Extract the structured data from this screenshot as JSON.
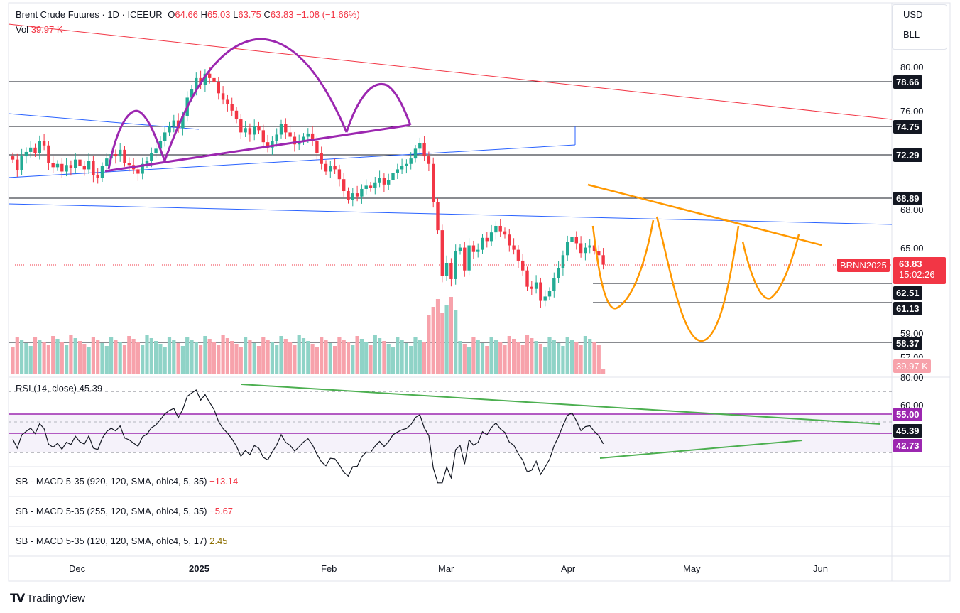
{
  "header": {
    "symbol": "Brent Crude Futures · 1D · ICEEUR",
    "o_label": "O",
    "o": "64.66",
    "h_label": "H",
    "h": "65.03",
    "l_label": "L",
    "l": "63.75",
    "c_label": "C",
    "c": "63.83",
    "change": "−1.08 (−1.66%)",
    "vol_label": "Vol",
    "vol": "39.97 K"
  },
  "currency_menu": {
    "currency": "USD",
    "unit": "BLL"
  },
  "price_axis": [
    "80.00",
    "76.00",
    "68.00",
    "65.00",
    "59.00",
    "57.00"
  ],
  "price_levels": [
    {
      "label": "78.66",
      "value": 78.66
    },
    {
      "label": "74.75",
      "value": 74.75
    },
    {
      "label": "72.29",
      "value": 72.29
    },
    {
      "label": "68.89",
      "value": 68.89
    },
    {
      "label": "62.51",
      "value": 62.51
    },
    {
      "label": "61.13",
      "value": 61.13
    },
    {
      "label": "58.37",
      "value": 58.37
    }
  ],
  "last_price": {
    "symbol_tag": "BRNN2025",
    "price": "63.83",
    "countdown": "15:02:26"
  },
  "volume_tag": "39.97 K",
  "rsi": {
    "label": "RSI (14, close)",
    "value": "45.39",
    "axis": [
      "80.00",
      "60.00"
    ],
    "levels": [
      "55.00",
      "45.39",
      "42.73"
    ]
  },
  "indicators": [
    {
      "label": "SB - MACD 5-35 (920, 120, SMA, ohlc4, 5, 35)",
      "value": "−13.14",
      "color": "#f23645"
    },
    {
      "label": "SB - MACD 5-35 (255, 120, SMA, ohlc4, 5, 35)",
      "value": "−5.67",
      "color": "#f23645"
    },
    {
      "label": "SB - MACD 5-35 (120, 120, SMA, ohlc4, 5, 17)",
      "value": "2.45",
      "color": "#8d6e00"
    }
  ],
  "time_axis": [
    "Dec",
    "2025",
    "Feb",
    "Mar",
    "Apr",
    "May",
    "Jun"
  ],
  "branding": "TradingView",
  "colors": {
    "up": "#22ab94",
    "down": "#f23645",
    "purple": "#9c27b0",
    "orange": "#ff9800",
    "blue": "#2962ff",
    "rsi_band": "#7e57c2"
  },
  "chart_data": {
    "type": "candlestick",
    "closes_approx": [
      73.5,
      72.5,
      73.8,
      74.2,
      74.6,
      74.1,
      75.2,
      74.8,
      73.2,
      72.8,
      73.1,
      72.4,
      73.0,
      72.7,
      73.5,
      72.9,
      72.6,
      73.4,
      72.1,
      71.8,
      72.9,
      73.6,
      74.0,
      73.8,
      74.4,
      73.2,
      73.0,
      72.6,
      72.2,
      73.1,
      73.4,
      74.1,
      74.5,
      75.2,
      76.0,
      76.6,
      77.1,
      76.4,
      77.5,
      79.2,
      80.0,
      81.0,
      80.4,
      81.4,
      81.0,
      80.6,
      79.6,
      79.0,
      78.6,
      78.0,
      77.2,
      76.0,
      76.4,
      75.8,
      76.6,
      76.2,
      75.1,
      74.6,
      75.2,
      75.8,
      76.8,
      76.0,
      75.6,
      74.9,
      75.2,
      75.6,
      75.9,
      75.2,
      74.1,
      73.1,
      72.4,
      72.9,
      72.6,
      71.7,
      70.6,
      69.8,
      70.4,
      70.1,
      70.8,
      71.1,
      70.9,
      71.4,
      71.8,
      71.2,
      71.6,
      72.3,
      72.6,
      72.9,
      73.1,
      73.6,
      74.5,
      75.0,
      73.8,
      73.1,
      69.6,
      67.0,
      62.8,
      64.0,
      62.5,
      65.1,
      65.4,
      63.3,
      65.6,
      65.0,
      65.2,
      66.3,
      66.0,
      66.8,
      67.4,
      66.9,
      66.6,
      65.6,
      65.2,
      64.2,
      63.3,
      61.8,
      61.6,
      62.2,
      60.5,
      60.9,
      61.4,
      62.6,
      63.5,
      64.7,
      65.9,
      66.4,
      65.8,
      64.9,
      65.4,
      65.6,
      65.1,
      64.7,
      63.83
    ],
    "volume_last": "39.97 K",
    "rsi_last": 45.39,
    "rsi_levels": [
      55.0,
      42.73
    ]
  }
}
